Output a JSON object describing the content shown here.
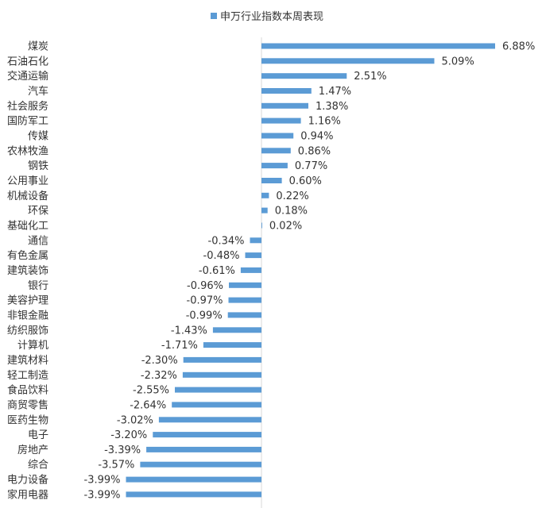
{
  "chart_data": {
    "type": "bar",
    "orientation": "horizontal",
    "legend": {
      "label": "申万行业指数本周表现",
      "position": "top"
    },
    "bar_color": "#5b9bd5",
    "xlim": [
      -4.5,
      7.5
    ],
    "grid": false,
    "categories": [
      "煤炭",
      "石油石化",
      "交通运输",
      "汽车",
      "社会服务",
      "国防军工",
      "传媒",
      "农林牧渔",
      "钢铁",
      "公用事业",
      "机械设备",
      "环保",
      "基础化工",
      "通信",
      "有色金属",
      "建筑装饰",
      "银行",
      "美容护理",
      "非银金融",
      "纺织服饰",
      "计算机",
      "建筑材料",
      "轻工制造",
      "食品饮料",
      "商贸零售",
      "医药生物",
      "电子",
      "房地产",
      "综合",
      "电力设备",
      "家用电器"
    ],
    "values": [
      6.88,
      5.09,
      2.51,
      1.47,
      1.38,
      1.16,
      0.94,
      0.86,
      0.77,
      0.6,
      0.22,
      0.18,
      0.02,
      -0.34,
      -0.48,
      -0.61,
      -0.96,
      -0.97,
      -0.99,
      -1.43,
      -1.71,
      -2.3,
      -2.32,
      -2.55,
      -2.64,
      -3.02,
      -3.2,
      -3.39,
      -3.57,
      -3.99,
      -3.99
    ],
    "value_labels": [
      "6.88%",
      "5.09%",
      "2.51%",
      "1.47%",
      "1.38%",
      "1.16%",
      "0.94%",
      "0.86%",
      "0.77%",
      "0.60%",
      "0.22%",
      "0.18%",
      "0.02%",
      "-0.34%",
      "-0.48%",
      "-0.61%",
      "-0.96%",
      "-0.97%",
      "-0.99%",
      "-1.43%",
      "-1.71%",
      "-2.30%",
      "-2.32%",
      "-2.55%",
      "-2.64%",
      "-3.02%",
      "-3.20%",
      "-3.39%",
      "-3.57%",
      "-3.99%",
      "-3.99%"
    ]
  }
}
